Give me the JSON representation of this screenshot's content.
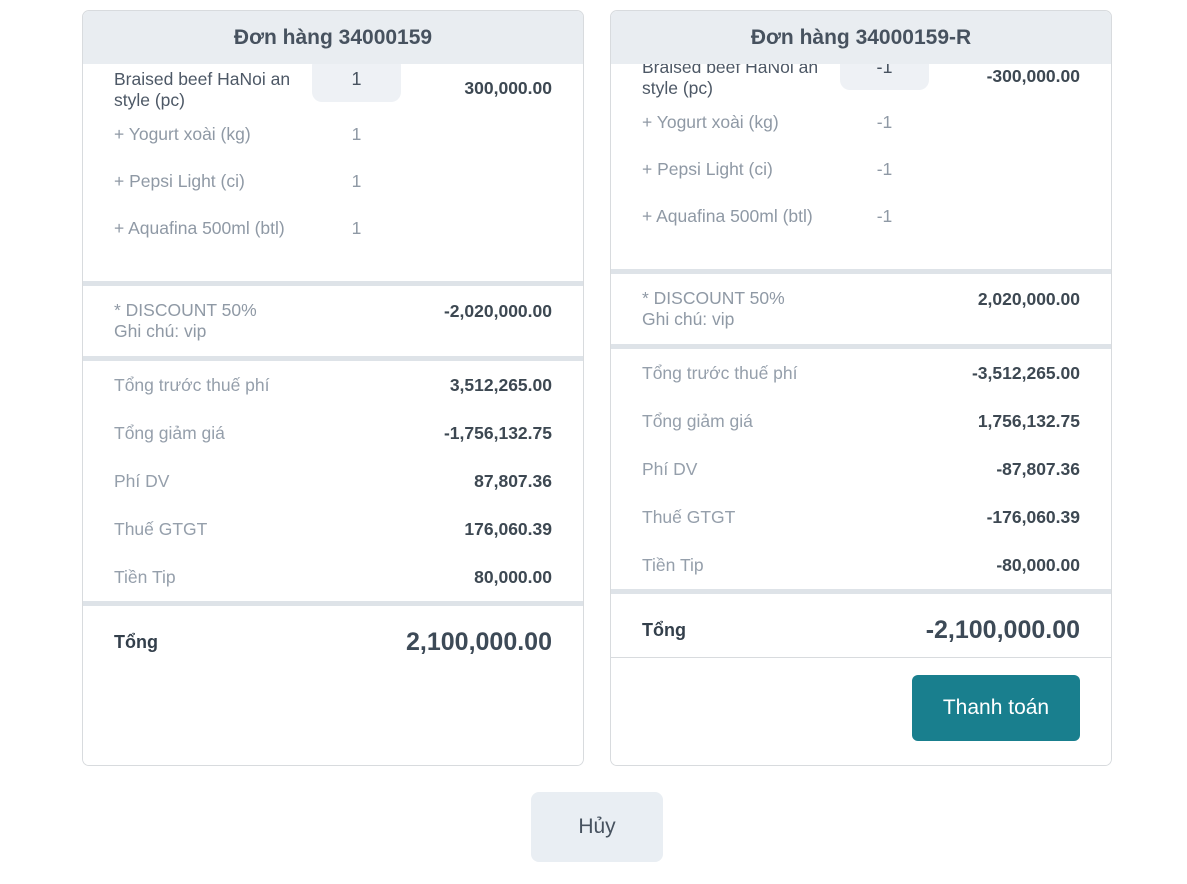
{
  "colors": {
    "accent_teal": "#197f8e",
    "header_bg": "#e9edf1",
    "divider": "#dee3e8",
    "muted_text": "#8f99a5",
    "dark_text": "#3d4852"
  },
  "orders": [
    {
      "title": "Đơn hàng 34000159",
      "items": [
        {
          "name": "Braised beef HaNoi an style (pc)",
          "qty": "1",
          "price": "300,000.00"
        },
        {
          "name": "+ Yogurt xoài (kg)",
          "qty": "1"
        },
        {
          "name": "+ Pepsi Light (ci)",
          "qty": "1"
        },
        {
          "name": "+ Aquafina 500ml (btl)",
          "qty": "1"
        }
      ],
      "discount": {
        "label": "* DISCOUNT 50%",
        "note": "Ghi chú: vip",
        "amount": "-2,020,000.00"
      },
      "totals": [
        {
          "label": "Tổng trước thuế phí",
          "value": "3,512,265.00"
        },
        {
          "label": "Tổng giảm giá",
          "value": "-1,756,132.75"
        },
        {
          "label": "Phí DV",
          "value": "87,807.36"
        },
        {
          "label": "Thuế GTGT",
          "value": "176,060.39"
        },
        {
          "label": "Tiền Tip",
          "value": "80,000.00"
        }
      ],
      "grand_total_label": "Tổng",
      "grand_total_value": "2,100,000.00"
    },
    {
      "title": "Đơn hàng 34000159-R",
      "items": [
        {
          "name": "Braised beef HaNoi an style (pc)",
          "qty": "-1",
          "price": "-300,000.00"
        },
        {
          "name": "+ Yogurt xoài (kg)",
          "qty": "-1"
        },
        {
          "name": "+ Pepsi Light (ci)",
          "qty": "-1"
        },
        {
          "name": "+ Aquafina 500ml (btl)",
          "qty": "-1"
        }
      ],
      "discount": {
        "label": "* DISCOUNT 50%",
        "note": "Ghi chú: vip",
        "amount": "2,020,000.00"
      },
      "totals": [
        {
          "label": "Tổng trước thuế phí",
          "value": "-3,512,265.00"
        },
        {
          "label": "Tổng giảm giá",
          "value": "1,756,132.75"
        },
        {
          "label": "Phí DV",
          "value": "-87,807.36"
        },
        {
          "label": "Thuế GTGT",
          "value": "-176,060.39"
        },
        {
          "label": "Tiền Tip",
          "value": "-80,000.00"
        }
      ],
      "grand_total_label": "Tổng",
      "grand_total_value": "-2,100,000.00",
      "pay_button_label": "Thanh toán"
    }
  ],
  "cancel_button_label": "Hủy"
}
